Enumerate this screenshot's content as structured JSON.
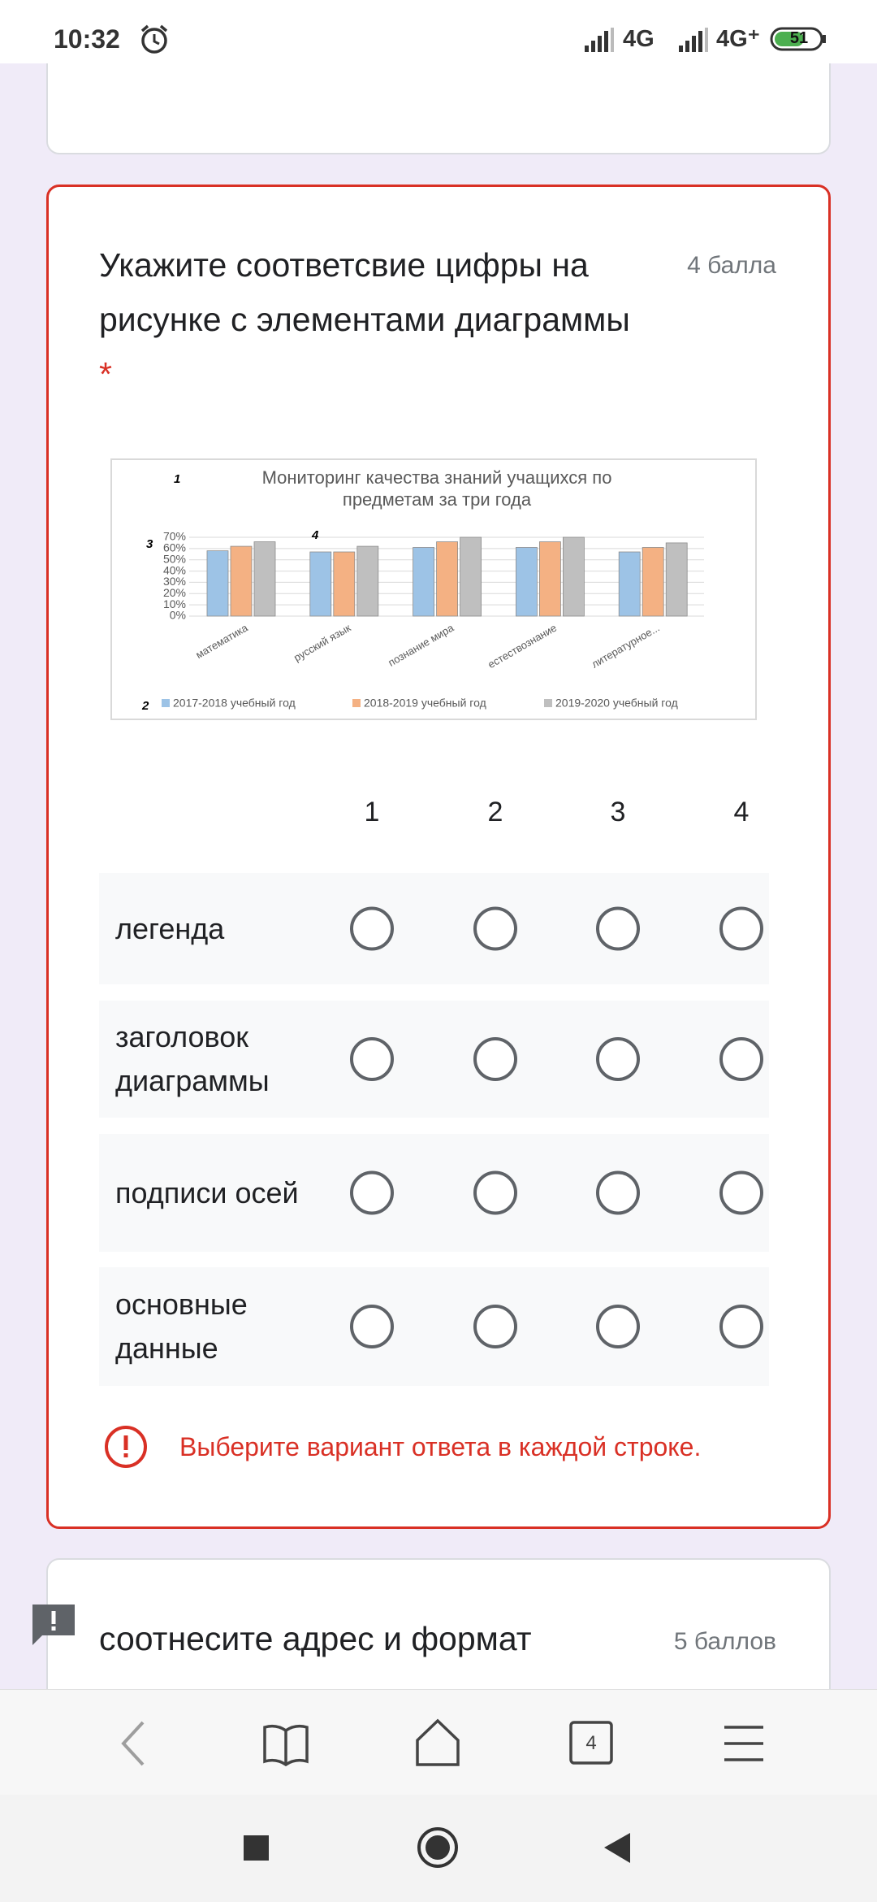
{
  "status_bar": {
    "time": "10:32",
    "network_1": "4G",
    "network_2": "4G⁺",
    "battery": "51"
  },
  "question": {
    "title": "Укажите соответсвие цифры на рисунке с элементами диаграммы",
    "required": "*",
    "points": "4 балла",
    "columns": [
      "1",
      "2",
      "3",
      "4"
    ],
    "rows": [
      "легенда",
      "заголовок диаграммы",
      "подписи осей",
      "основные данные"
    ],
    "error": "Выберите вариант ответа в каждой строке."
  },
  "chart_data": {
    "type": "bar",
    "title": "Мониторинг качества знаний учащихся по предметам  за три года",
    "annotations": [
      "1",
      "2",
      "3",
      "4"
    ],
    "categories": [
      "математика",
      "русский язык",
      "познание мира",
      "естествознание",
      "литературное..."
    ],
    "series": [
      {
        "name": "2017-2018 учебный год",
        "color": "#9dc3e6",
        "values": [
          58,
          57,
          61,
          61,
          57
        ]
      },
      {
        "name": "2018-2019 учебный год",
        "color": "#f4b183",
        "values": [
          62,
          57,
          66,
          66,
          61
        ]
      },
      {
        "name": "2019-2020 учебный год",
        "color": "#bfbfbf",
        "values": [
          66,
          62,
          70,
          70,
          65
        ]
      }
    ],
    "ylim": [
      0,
      70
    ],
    "yticks": [
      {
        "value": 0,
        "label": "0%"
      },
      {
        "value": 10,
        "label": "10%"
      },
      {
        "value": 20,
        "label": "20%"
      },
      {
        "value": 30,
        "label": "30%"
      },
      {
        "value": 40,
        "label": "40%"
      },
      {
        "value": 50,
        "label": "50%"
      },
      {
        "value": 60,
        "label": "60%"
      },
      {
        "value": 70,
        "label": "70%"
      }
    ],
    "grid": true
  },
  "next_question": {
    "title": "соотнесите адрес и формат",
    "points": "5 баллов"
  },
  "browser_toolbar": {
    "tab_count": "4"
  }
}
